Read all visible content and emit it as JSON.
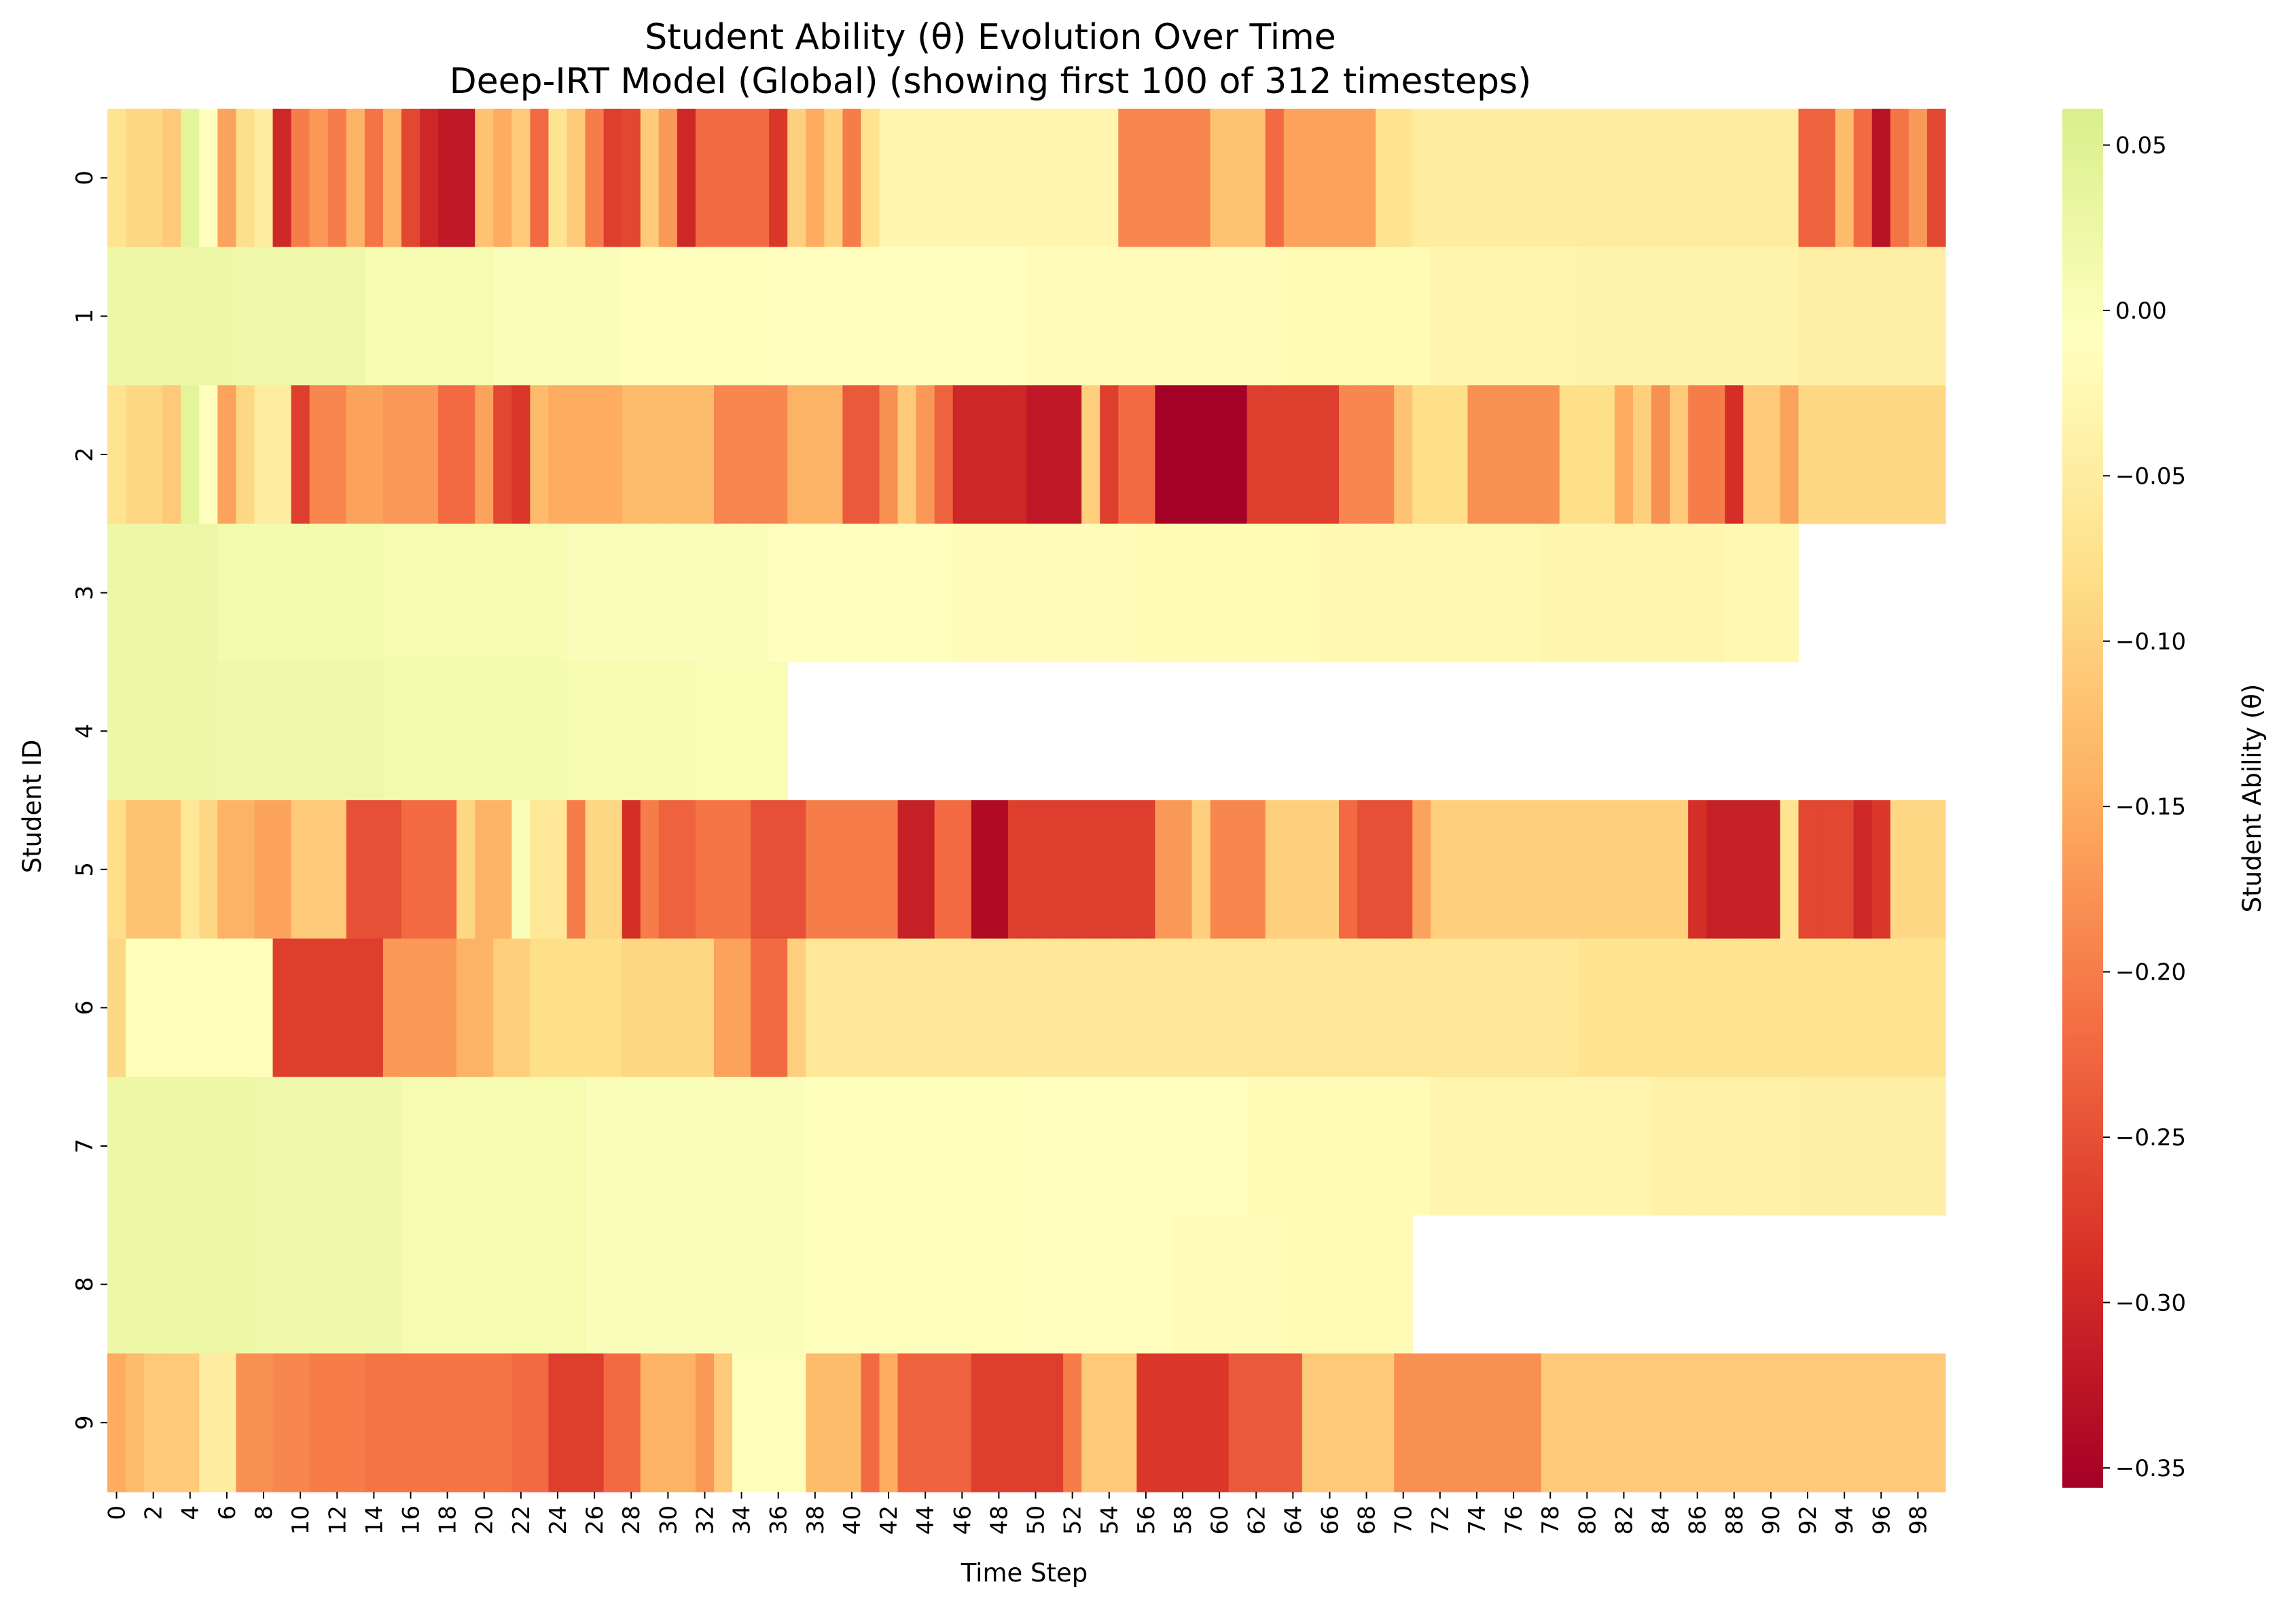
{
  "chart_data": {
    "type": "heatmap",
    "title": "Student Ability (θ) Evolution Over Time",
    "subtitle": "Deep-IRT Model (Global) (showing first 100 of 312 timesteps)",
    "xlabel": "Time Step",
    "ylabel": "Student ID",
    "colorbar_label": "Student Ability (θ)",
    "colormap": "RdYlGn",
    "colormap_stops": [
      "#a50026",
      "#d73027",
      "#f46d43",
      "#fdae61",
      "#fee08b",
      "#ffffbf",
      "#d9ef8b"
    ],
    "vmin": -0.356,
    "vmax": 0.061,
    "colorbar_ticks": [
      "0.05",
      "0.00",
      "−0.05",
      "−0.10",
      "−0.15",
      "−0.20",
      "−0.25",
      "−0.30",
      "−0.35"
    ],
    "colorbar_tick_values": [
      0.05,
      0.0,
      -0.05,
      -0.1,
      -0.15,
      -0.2,
      -0.25,
      -0.3,
      -0.35
    ],
    "x_ticks": [
      "0",
      "2",
      "4",
      "6",
      "8",
      "10",
      "12",
      "14",
      "16",
      "18",
      "20",
      "22",
      "24",
      "26",
      "28",
      "30",
      "32",
      "34",
      "36",
      "38",
      "40",
      "42",
      "44",
      "46",
      "48",
      "50",
      "52",
      "54",
      "56",
      "58",
      "60",
      "62",
      "64",
      "66",
      "68",
      "70",
      "72",
      "74",
      "76",
      "78",
      "80",
      "82",
      "84",
      "86",
      "88",
      "90",
      "92",
      "94",
      "96",
      "98"
    ],
    "y_ticks": [
      "0",
      "1",
      "2",
      "3",
      "4",
      "5",
      "6",
      "7",
      "8",
      "9"
    ],
    "n_timesteps": 100,
    "missing_color": "#ffffff",
    "rows": [
      {
        "student": "0",
        "length": 100,
        "segments": [
          [
            0,
            -0.07
          ],
          [
            1,
            -0.09
          ],
          [
            2,
            -0.09
          ],
          [
            3,
            -0.11
          ],
          [
            4,
            0.04
          ],
          [
            5,
            -0.01
          ],
          [
            6,
            -0.16
          ],
          [
            7,
            -0.08
          ],
          [
            8,
            -0.05
          ],
          [
            9,
            -0.3
          ],
          [
            10,
            -0.2
          ],
          [
            11,
            -0.17
          ],
          [
            12,
            -0.2
          ],
          [
            13,
            -0.14
          ],
          [
            14,
            -0.21
          ],
          [
            15,
            -0.14
          ],
          [
            16,
            -0.26
          ],
          [
            17,
            -0.3
          ],
          [
            18,
            -0.32
          ],
          [
            19,
            -0.32
          ],
          [
            20,
            -0.12
          ],
          [
            21,
            -0.15
          ],
          [
            22,
            -0.11
          ],
          [
            23,
            -0.22
          ],
          [
            24,
            -0.07
          ],
          [
            25,
            -0.11
          ],
          [
            26,
            -0.2
          ],
          [
            27,
            -0.27
          ],
          [
            28,
            -0.26
          ],
          [
            29,
            -0.11
          ],
          [
            30,
            -0.17
          ],
          [
            31,
            -0.3
          ],
          [
            32,
            -0.22
          ],
          [
            36,
            -0.28
          ],
          [
            37,
            -0.1
          ],
          [
            38,
            -0.15
          ],
          [
            39,
            -0.1
          ],
          [
            40,
            -0.2
          ],
          [
            41,
            -0.07
          ],
          [
            42,
            -0.03
          ],
          [
            55,
            -0.19
          ],
          [
            60,
            -0.12
          ],
          [
            63,
            -0.22
          ],
          [
            64,
            -0.16
          ],
          [
            69,
            -0.07
          ],
          [
            71,
            -0.05
          ],
          [
            92,
            -0.23
          ],
          [
            94,
            -0.13
          ],
          [
            95,
            -0.22
          ],
          [
            96,
            -0.33
          ],
          [
            97,
            -0.21
          ],
          [
            98,
            -0.17
          ],
          [
            99,
            -0.26
          ]
        ]
      },
      {
        "student": "1",
        "length": 100,
        "segments": [
          [
            0,
            0.025
          ],
          [
            7,
            0.02
          ],
          [
            14,
            0.01
          ],
          [
            21,
            0.0
          ],
          [
            28,
            -0.005
          ],
          [
            36,
            -0.01
          ],
          [
            50,
            -0.015
          ],
          [
            64,
            -0.02
          ],
          [
            72,
            -0.03
          ],
          [
            80,
            -0.035
          ],
          [
            92,
            -0.045
          ]
        ]
      },
      {
        "student": "2",
        "length": 100,
        "segments": [
          [
            0,
            -0.07
          ],
          [
            1,
            -0.09
          ],
          [
            2,
            -0.09
          ],
          [
            3,
            -0.11
          ],
          [
            4,
            0.04
          ],
          [
            5,
            -0.01
          ],
          [
            6,
            -0.16
          ],
          [
            7,
            -0.09
          ],
          [
            8,
            -0.05
          ],
          [
            10,
            -0.27
          ],
          [
            11,
            -0.19
          ],
          [
            13,
            -0.16
          ],
          [
            15,
            -0.17
          ],
          [
            18,
            -0.22
          ],
          [
            20,
            -0.16
          ],
          [
            21,
            -0.26
          ],
          [
            22,
            -0.28
          ],
          [
            23,
            -0.13
          ],
          [
            24,
            -0.15
          ],
          [
            28,
            -0.13
          ],
          [
            33,
            -0.19
          ],
          [
            37,
            -0.14
          ],
          [
            40,
            -0.24
          ],
          [
            42,
            -0.18
          ],
          [
            43,
            -0.11
          ],
          [
            44,
            -0.17
          ],
          [
            45,
            -0.23
          ],
          [
            46,
            -0.3
          ],
          [
            50,
            -0.32
          ],
          [
            53,
            -0.1
          ],
          [
            54,
            -0.27
          ],
          [
            55,
            -0.22
          ],
          [
            57,
            -0.36
          ],
          [
            62,
            -0.27
          ],
          [
            67,
            -0.19
          ],
          [
            70,
            -0.12
          ],
          [
            71,
            -0.08
          ],
          [
            74,
            -0.18
          ],
          [
            79,
            -0.08
          ],
          [
            82,
            -0.15
          ],
          [
            83,
            -0.1
          ],
          [
            84,
            -0.18
          ],
          [
            85,
            -0.11
          ],
          [
            86,
            -0.2
          ],
          [
            88,
            -0.29
          ],
          [
            89,
            -0.11
          ],
          [
            91,
            -0.16
          ],
          [
            92,
            -0.09
          ]
        ]
      },
      {
        "student": "3",
        "length": 92,
        "segments": [
          [
            0,
            0.025
          ],
          [
            6,
            0.015
          ],
          [
            15,
            0.01
          ],
          [
            25,
            0.0
          ],
          [
            36,
            -0.01
          ],
          [
            46,
            -0.015
          ],
          [
            56,
            -0.02
          ],
          [
            66,
            -0.025
          ],
          [
            78,
            -0.03
          ],
          [
            88,
            -0.025
          ]
        ]
      },
      {
        "student": "4",
        "length": 37,
        "segments": [
          [
            0,
            0.025
          ],
          [
            6,
            0.02
          ],
          [
            15,
            0.015
          ],
          [
            25,
            0.01
          ],
          [
            32,
            0.005
          ]
        ]
      },
      {
        "student": "5",
        "length": 100,
        "segments": [
          [
            0,
            -0.08
          ],
          [
            1,
            -0.12
          ],
          [
            4,
            -0.06
          ],
          [
            5,
            -0.09
          ],
          [
            6,
            -0.14
          ],
          [
            8,
            -0.16
          ],
          [
            10,
            -0.11
          ],
          [
            13,
            -0.25
          ],
          [
            16,
            -0.22
          ],
          [
            18,
            -0.22
          ],
          [
            19,
            -0.09
          ],
          [
            20,
            -0.14
          ],
          [
            22,
            0.0
          ],
          [
            23,
            -0.06
          ],
          [
            25,
            -0.2
          ],
          [
            26,
            -0.09
          ],
          [
            28,
            -0.29
          ],
          [
            29,
            -0.2
          ],
          [
            30,
            -0.23
          ],
          [
            32,
            -0.21
          ],
          [
            35,
            -0.25
          ],
          [
            38,
            -0.2
          ],
          [
            43,
            -0.31
          ],
          [
            45,
            -0.22
          ],
          [
            47,
            -0.34
          ],
          [
            49,
            -0.27
          ],
          [
            57,
            -0.17
          ],
          [
            59,
            -0.1
          ],
          [
            60,
            -0.19
          ],
          [
            63,
            -0.1
          ],
          [
            67,
            -0.22
          ],
          [
            68,
            -0.25
          ],
          [
            71,
            -0.16
          ],
          [
            72,
            -0.1
          ],
          [
            86,
            -0.29
          ],
          [
            87,
            -0.31
          ],
          [
            91,
            -0.07
          ],
          [
            92,
            -0.26
          ],
          [
            95,
            -0.3
          ],
          [
            96,
            -0.28
          ],
          [
            97,
            -0.09
          ]
        ]
      },
      {
        "student": "6",
        "length": 100,
        "segments": [
          [
            0,
            -0.09
          ],
          [
            1,
            -0.005
          ],
          [
            9,
            -0.27
          ],
          [
            15,
            -0.17
          ],
          [
            19,
            -0.14
          ],
          [
            21,
            -0.1
          ],
          [
            23,
            -0.08
          ],
          [
            28,
            -0.09
          ],
          [
            33,
            -0.16
          ],
          [
            35,
            -0.22
          ],
          [
            37,
            -0.1
          ],
          [
            38,
            -0.06
          ],
          [
            80,
            -0.07
          ]
        ]
      },
      {
        "student": "7",
        "length": 100,
        "segments": [
          [
            0,
            0.025
          ],
          [
            8,
            0.02
          ],
          [
            16,
            0.01
          ],
          [
            26,
            0.0
          ],
          [
            38,
            -0.005
          ],
          [
            50,
            -0.01
          ],
          [
            62,
            -0.02
          ],
          [
            72,
            -0.03
          ],
          [
            84,
            -0.04
          ],
          [
            92,
            -0.045
          ]
        ]
      },
      {
        "student": "8",
        "length": 71,
        "segments": [
          [
            0,
            0.025
          ],
          [
            8,
            0.02
          ],
          [
            16,
            0.01
          ],
          [
            26,
            0.0
          ],
          [
            38,
            -0.005
          ],
          [
            50,
            -0.01
          ],
          [
            58,
            -0.015
          ],
          [
            64,
            -0.02
          ]
        ]
      },
      {
        "student": "9",
        "length": 100,
        "segments": [
          [
            0,
            -0.15
          ],
          [
            1,
            -0.13
          ],
          [
            2,
            -0.11
          ],
          [
            5,
            -0.05
          ],
          [
            7,
            -0.18
          ],
          [
            9,
            -0.19
          ],
          [
            11,
            -0.2
          ],
          [
            14,
            -0.21
          ],
          [
            18,
            -0.21
          ],
          [
            22,
            -0.22
          ],
          [
            24,
            -0.27
          ],
          [
            27,
            -0.22
          ],
          [
            29,
            -0.14
          ],
          [
            32,
            -0.17
          ],
          [
            33,
            -0.11
          ],
          [
            34,
            -0.005
          ],
          [
            38,
            -0.13
          ],
          [
            41,
            -0.22
          ],
          [
            42,
            -0.15
          ],
          [
            43,
            -0.23
          ],
          [
            47,
            -0.27
          ],
          [
            52,
            -0.2
          ],
          [
            53,
            -0.11
          ],
          [
            56,
            -0.28
          ],
          [
            61,
            -0.24
          ],
          [
            65,
            -0.11
          ],
          [
            70,
            -0.18
          ],
          [
            78,
            -0.11
          ]
        ]
      }
    ]
  }
}
